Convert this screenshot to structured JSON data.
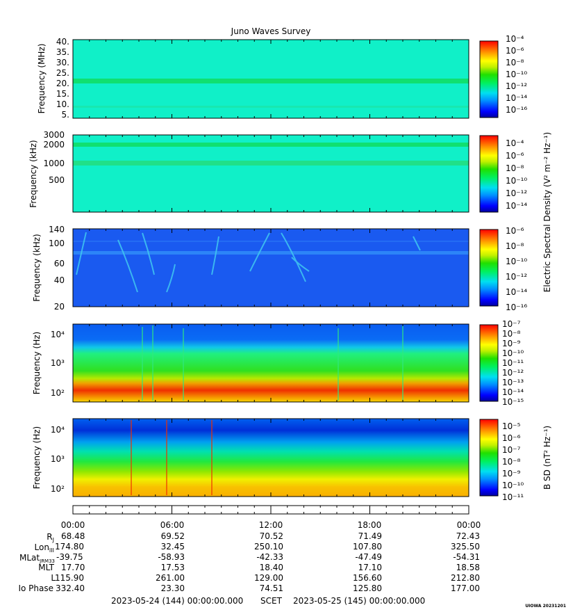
{
  "title": "Juno Waves Survey",
  "footer": {
    "start": "2023-05-24 (144) 00:00:00.000",
    "scet": "SCET",
    "end": "2023-05-25 (145) 00:00:00.000",
    "credit": "UIOWA 20231201"
  },
  "side_labels": {
    "electric": "Electric Spectral Density (V² m⁻² Hz⁻¹)",
    "magnetic": "B SD (nT² Hz⁻¹)"
  },
  "chart_data": [
    {
      "type": "heatmap",
      "id": "p1",
      "ylabel": "Frequency (MHz)",
      "y_scale": "linear",
      "ylim": [
        3.5,
        41
      ],
      "y_ticks": [
        "40.",
        "35.",
        "30.",
        "25.",
        "20.",
        "15.",
        "10.",
        "5."
      ],
      "y_tick_values": [
        40,
        35,
        30,
        25,
        20,
        15,
        10,
        5
      ],
      "colorbar": {
        "ticks": [
          "10⁻⁴",
          "10⁻⁶",
          "10⁻⁸",
          "10⁻¹⁰",
          "10⁻¹²",
          "10⁻¹⁴",
          "10⁻¹⁶"
        ],
        "log_range": [
          -17,
          -4
        ]
      },
      "features": "uniform ~1e-13 background, bright band near 21 MHz"
    },
    {
      "type": "heatmap",
      "id": "p2",
      "ylabel": "Frequency (kHz)",
      "y_scale": "log",
      "ylim": [
        140,
        3000
      ],
      "y_ticks": [
        "3000",
        "2000",
        "1000",
        "500"
      ],
      "y_tick_values": [
        3000,
        2000,
        1000,
        500
      ],
      "colorbar": {
        "ticks": [
          "10⁻⁴",
          "10⁻⁶",
          "10⁻⁸",
          "10⁻¹⁰",
          "10⁻¹²",
          "10⁻¹⁴"
        ],
        "log_range": [
          -15.5,
          -3
        ]
      },
      "features": "uniform background, bands near 2000 and 1000 kHz"
    },
    {
      "type": "heatmap",
      "id": "p3",
      "ylabel": "Frequency (kHz)",
      "y_scale": "log",
      "ylim": [
        20,
        140
      ],
      "y_ticks": [
        "140",
        "100",
        "60",
        "40",
        "20"
      ],
      "y_tick_values": [
        140,
        100,
        60,
        40,
        20
      ],
      "colorbar": {
        "ticks": [
          "10⁻⁶",
          "10⁻⁸",
          "10⁻¹⁰",
          "10⁻¹²",
          "10⁻¹⁴",
          "10⁻¹⁶"
        ],
        "log_range": [
          -16,
          -6
        ]
      },
      "features": "blue background with scattered cyan drifting emissions"
    },
    {
      "type": "heatmap",
      "id": "p4",
      "ylabel": "Frequency (Hz)",
      "y_scale": "log",
      "ylim": [
        50,
        20000
      ],
      "y_ticks": [
        "10⁴",
        "10³",
        "10²"
      ],
      "y_tick_values": [
        10000,
        1000,
        100
      ],
      "colorbar": {
        "ticks": [
          "10⁻⁷",
          "10⁻⁸",
          "10⁻⁹",
          "10⁻¹⁰",
          "10⁻¹¹",
          "10⁻¹²",
          "10⁻¹³",
          "10⁻¹⁴",
          "10⁻¹⁵"
        ],
        "log_range": [
          -15,
          -7
        ]
      },
      "features": "blue above ~2 kHz, green mid band, red/orange below 300 Hz"
    },
    {
      "type": "heatmap",
      "id": "p5",
      "ylabel": "Frequency (Hz)",
      "y_scale": "log",
      "ylim": [
        50,
        20000
      ],
      "y_ticks": [
        "10⁴",
        "10³",
        "10²"
      ],
      "y_tick_values": [
        10000,
        1000,
        100
      ],
      "colorbar": {
        "ticks": [
          "10⁻⁵",
          "10⁻⁶",
          "10⁻⁷",
          "10⁻⁸",
          "10⁻⁹",
          "10⁻¹⁰",
          "10⁻¹¹"
        ],
        "log_range": [
          -11,
          -4.5
        ]
      },
      "features": "vertical gradient blue high to orange low frequencies"
    }
  ],
  "ephemeris": {
    "times": [
      "00:00",
      "06:00",
      "12:00",
      "18:00",
      "00:00"
    ],
    "rows": [
      {
        "label": "R",
        "sub": "J",
        "values": [
          "68.48",
          "69.52",
          "70.52",
          "71.49",
          "72.43"
        ]
      },
      {
        "label": "Lon",
        "sub": "III",
        "values": [
          "174.80",
          "32.45",
          "250.10",
          "107.80",
          "325.50"
        ]
      },
      {
        "label": "MLat",
        "sub": "JRM33",
        "values": [
          "-39.75",
          "-58.93",
          "-42.33",
          "-47.49",
          "-54.31"
        ]
      },
      {
        "label": "MLT",
        "sub": "",
        "values": [
          "17.70",
          "17.53",
          "18.40",
          "17.10",
          "18.58"
        ]
      },
      {
        "label": "L",
        "sub": "",
        "values": [
          "115.90",
          "261.00",
          "129.00",
          "156.60",
          "212.80"
        ]
      },
      {
        "label": "Io Phase",
        "sub": "",
        "values": [
          "332.40",
          "23.30",
          "74.51",
          "125.80",
          "177.00"
        ]
      }
    ]
  }
}
